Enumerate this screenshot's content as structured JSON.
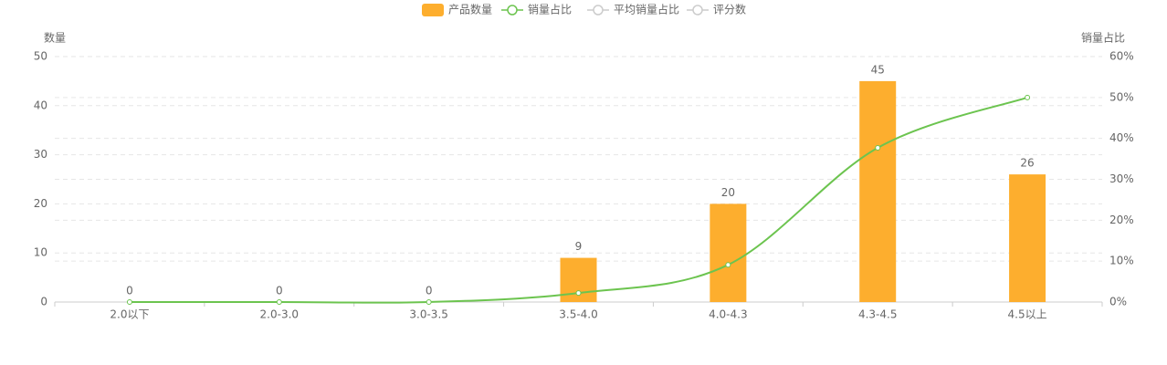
{
  "chart_data": {
    "type": "bar-line",
    "categories": [
      "2.0以下",
      "2.0-3.0",
      "3.0-3.5",
      "3.5-4.0",
      "4.0-4.3",
      "4.3-4.5",
      "4.5以上"
    ],
    "series": [
      {
        "name": "产品数量",
        "type": "bar",
        "color": "#fdae2e",
        "values": [
          0,
          0,
          0,
          9,
          20,
          45,
          26
        ]
      },
      {
        "name": "销量占比",
        "type": "line",
        "axis": "y2",
        "color": "#6cc44f",
        "values": [
          0,
          0,
          0,
          2.2,
          9.1,
          37.7,
          50.0
        ]
      },
      {
        "name": "平均销量占比",
        "type": "line",
        "color": "#cccccc",
        "visible": false
      },
      {
        "name": "评分数",
        "type": "line",
        "color": "#cccccc",
        "visible": false
      }
    ],
    "ylabel": "数量",
    "y2label": "销量占比",
    "ylim": [
      0,
      50
    ],
    "yticks": [
      0,
      10,
      20,
      30,
      40,
      50
    ],
    "y2lim": [
      0,
      60
    ],
    "y2ticks": [
      {
        "value": 0,
        "label": "0%"
      },
      {
        "value": 10,
        "label": "10%"
      },
      {
        "value": 20,
        "label": "20%"
      },
      {
        "value": 30,
        "label": "30%"
      },
      {
        "value": 40,
        "label": "40%"
      },
      {
        "value": 50,
        "label": "50%"
      },
      {
        "value": 60,
        "label": "60%"
      }
    ],
    "grid": true,
    "legend": "top"
  }
}
